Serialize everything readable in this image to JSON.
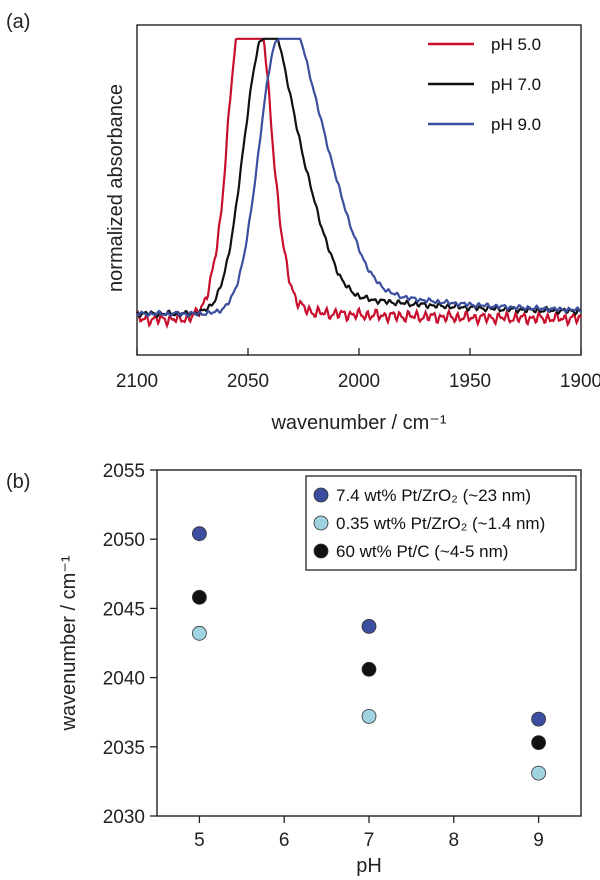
{
  "chart_data": [
    {
      "panel_label": "(a)",
      "type": "line",
      "xlabel": "wavenumber / cm⁻¹",
      "ylabel": "normalized absorbance",
      "xlim": [
        2100,
        1900
      ],
      "x_reversed": true,
      "ylim": [
        -0.15,
        1.05
      ],
      "y_ticks_shown": false,
      "x_ticks": [
        "2100",
        "2050",
        "2000",
        "1950",
        "1900"
      ],
      "legend_position": "top-right",
      "series": [
        {
          "name": "pH 5.0",
          "color": "#c8102e",
          "peak_x": 2051,
          "peak_x2": 2054,
          "width_low": 8,
          "width_high": 9,
          "baseline": -0.02,
          "tail": 0.04,
          "noise": 0.025,
          "shoulder_x": 2045,
          "shoulder_amp": 0.35,
          "shoulder_w": 6
        },
        {
          "name": "pH 7.0",
          "color": "#111111",
          "peak_x": 2043,
          "width_low": 9,
          "width_high": 13,
          "baseline": 0.0,
          "tail": 0.12,
          "noise": 0.012,
          "shoulder_x": 2020,
          "shoulder_amp": 0.12,
          "shoulder_w": 8
        },
        {
          "name": "pH 9.0",
          "color": "#3b4f9e",
          "peak_x": 2036,
          "width_low": 9,
          "width_high": 16,
          "baseline": 0.0,
          "tail": 0.16,
          "noise": 0.01,
          "shoulder_x": 2010,
          "shoulder_amp": 0.12,
          "shoulder_w": 10
        }
      ]
    },
    {
      "panel_label": "(b)",
      "type": "scatter",
      "xlabel": "pH",
      "ylabel": "wavenumber / cm⁻¹",
      "xlim": [
        4.5,
        9.5
      ],
      "ylim": [
        2030,
        2055
      ],
      "x_ticks": [
        5,
        6,
        7,
        8,
        9
      ],
      "y_ticks": [
        2030,
        2035,
        2040,
        2045,
        2050,
        2055
      ],
      "legend_position": "top-right",
      "series": [
        {
          "name": "7.4 wt% Pt/ZrO₂ (~23 nm)",
          "color": "#3b4f9e",
          "x": [
            5,
            7,
            9
          ],
          "y": [
            2050.4,
            2043.7,
            2037.0
          ]
        },
        {
          "name": "0.35 wt% Pt/ZrO₂ (~1.4 nm)",
          "color": "#9fd3e0",
          "x": [
            5,
            7,
            9
          ],
          "y": [
            2043.2,
            2037.2,
            2033.1
          ]
        },
        {
          "name": "60 wt% Pt/C (~4-5 nm)",
          "color": "#111111",
          "x": [
            5,
            7,
            9
          ],
          "y": [
            2045.8,
            2040.6,
            2035.3
          ]
        }
      ]
    }
  ]
}
